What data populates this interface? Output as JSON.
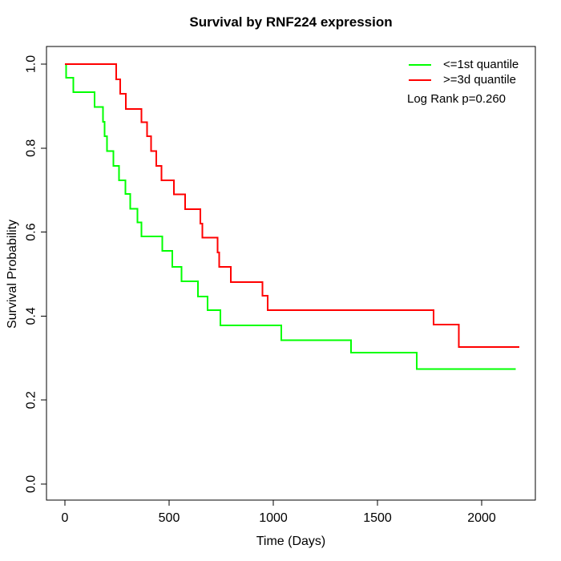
{
  "chart_data": {
    "type": "line",
    "subtype": "kaplan-meier-step",
    "title": "Survival by RNF224 expression",
    "xlabel": "Time (Days)",
    "ylabel": "Survival Probability",
    "x_ticks": [
      0,
      500,
      1000,
      1500,
      2000
    ],
    "y_ticks": [
      0.0,
      0.2,
      0.4,
      0.6,
      0.8,
      1.0
    ],
    "xlim": [
      -90,
      2258
    ],
    "ylim": [
      -0.04,
      1.04
    ],
    "grid": false,
    "legend_position": "top-right",
    "annotation": "Log Rank p=0.260",
    "series": [
      {
        "name": "<=1st quantile",
        "color": "#00FF00",
        "points": [
          [
            0,
            1.0
          ],
          [
            5,
            0.968
          ],
          [
            41,
            0.933
          ],
          [
            143,
            0.898
          ],
          [
            182,
            0.863
          ],
          [
            191,
            0.828
          ],
          [
            201,
            0.793
          ],
          [
            233,
            0.758
          ],
          [
            259,
            0.723
          ],
          [
            291,
            0.691
          ],
          [
            314,
            0.656
          ],
          [
            349,
            0.623
          ],
          [
            368,
            0.59
          ],
          [
            468,
            0.555
          ],
          [
            515,
            0.517
          ],
          [
            560,
            0.483
          ],
          [
            638,
            0.447
          ],
          [
            685,
            0.414
          ],
          [
            746,
            0.378
          ],
          [
            1038,
            0.343
          ],
          [
            1374,
            0.313
          ],
          [
            1688,
            0.274
          ],
          [
            2163,
            0.274
          ]
        ]
      },
      {
        "name": ">=3d quantile",
        "color": "#FF0000",
        "points": [
          [
            0,
            1.0
          ],
          [
            247,
            0.964
          ],
          [
            266,
            0.929
          ],
          [
            292,
            0.893
          ],
          [
            368,
            0.862
          ],
          [
            394,
            0.828
          ],
          [
            413,
            0.793
          ],
          [
            438,
            0.758
          ],
          [
            464,
            0.723
          ],
          [
            524,
            0.69
          ],
          [
            576,
            0.655
          ],
          [
            650,
            0.62
          ],
          [
            660,
            0.587
          ],
          [
            733,
            0.552
          ],
          [
            740,
            0.517
          ],
          [
            797,
            0.481
          ],
          [
            948,
            0.448
          ],
          [
            973,
            0.414
          ],
          [
            1769,
            0.38
          ],
          [
            1891,
            0.326
          ],
          [
            2180,
            0.326
          ]
        ]
      }
    ],
    "axis_color": "#000000",
    "background": "#FFFFFF"
  }
}
